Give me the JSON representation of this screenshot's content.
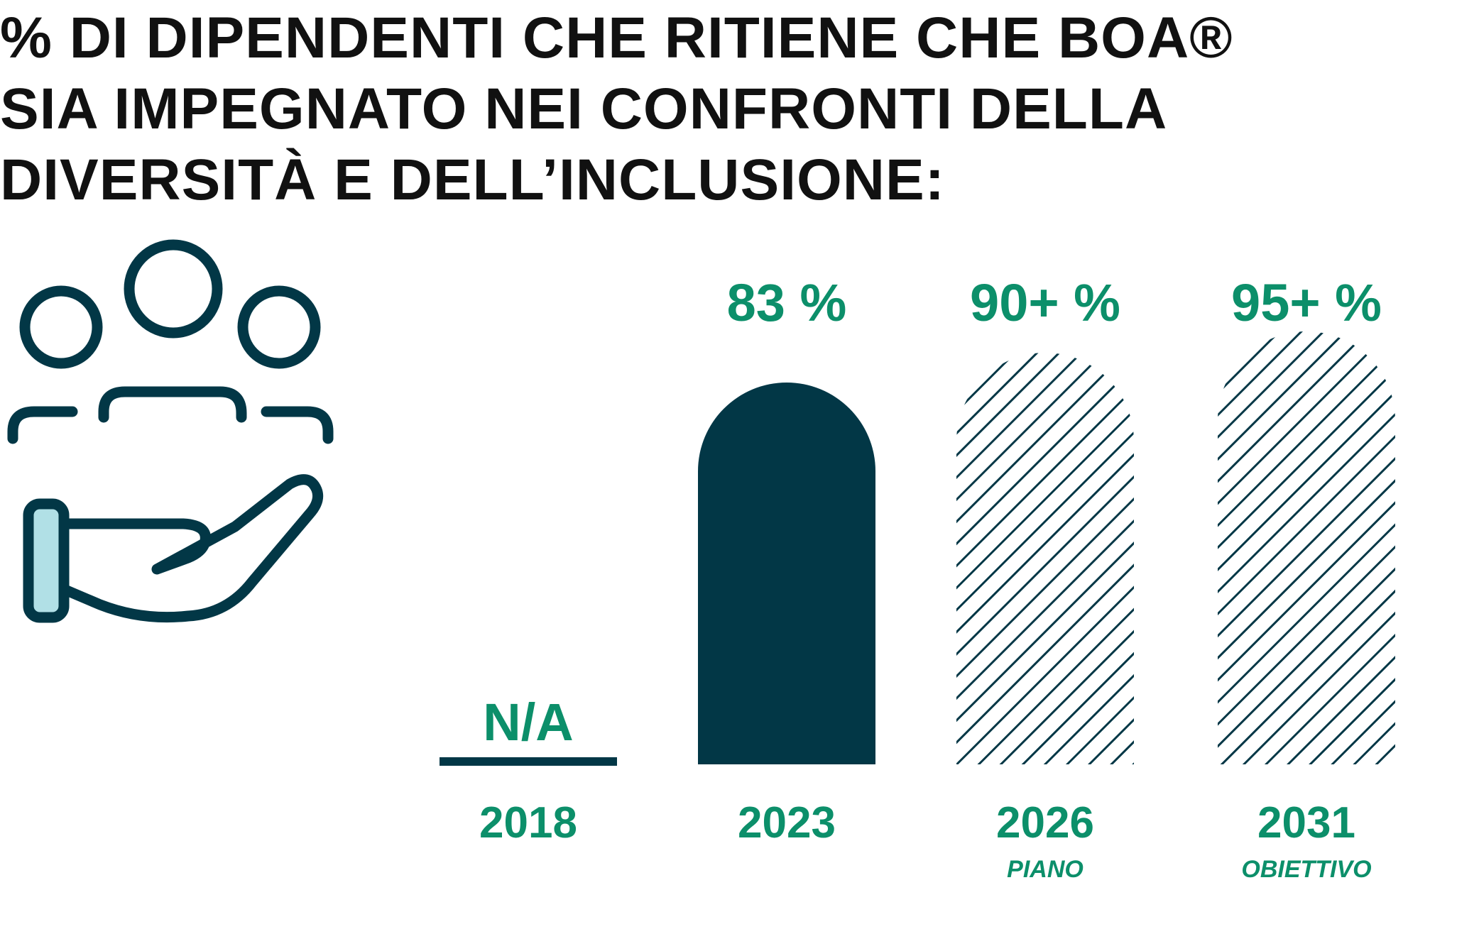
{
  "title_lines": [
    "% DI DIPENDENTI CHE RITIENE CHE BOA®",
    "SIA IMPEGNATO NEI CONFRONTI DELLA",
    "DIVERSITÀ E DELL’INCLUSIONE:"
  ],
  "colors": {
    "title": "#111111",
    "accent_green": "#0c8f6a",
    "navy": "#023746",
    "icon_fill_light": "#b1e0e6"
  },
  "icon": "hand-holding-people-icon",
  "chart_data": {
    "type": "bar",
    "title": "% DI DIPENDENTI CHE RITIENE CHE BOA® SIA IMPEGNATO NEI CONFRONTI DELLA DIVERSITÀ E DELL’INCLUSIONE:",
    "categories": [
      "2018",
      "2023",
      "2026",
      "2031"
    ],
    "values": [
      null,
      83,
      90,
      95
    ],
    "value_labels": [
      "N/A",
      "83 %",
      "90+ %",
      "95+ %"
    ],
    "sublabels": [
      "",
      "",
      "PIANO",
      "OBIETTIVO"
    ],
    "styles": [
      "none",
      "solid",
      "hatched",
      "hatched"
    ],
    "ylim": [
      0,
      100
    ],
    "grid": false,
    "legend": "none"
  }
}
